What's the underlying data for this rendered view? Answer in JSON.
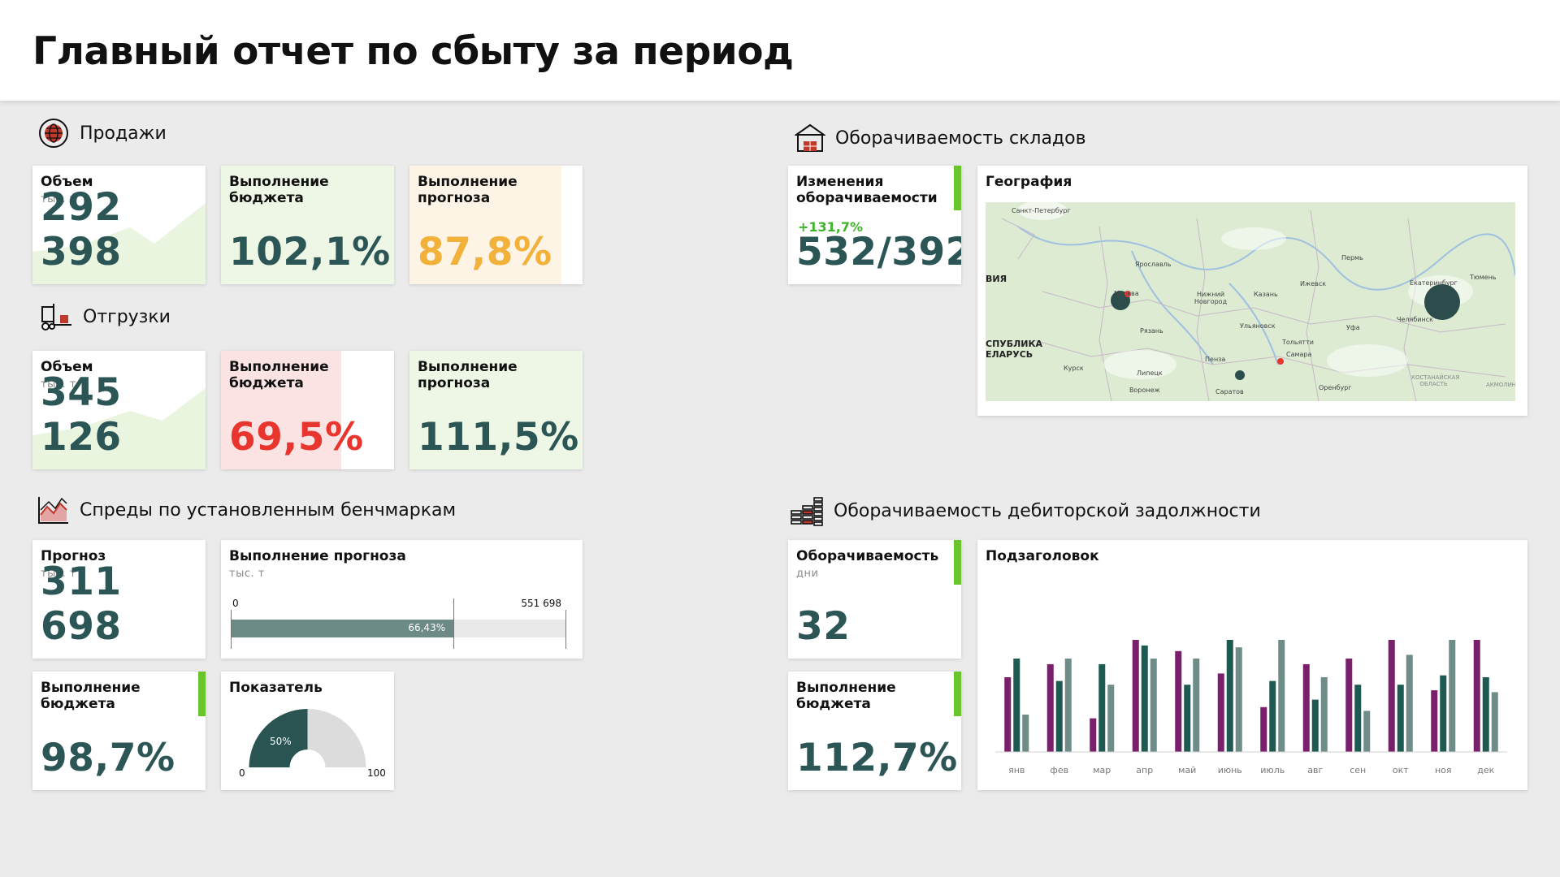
{
  "header": {
    "title": "Главный отчет по сбыту за период"
  },
  "sales": {
    "section_title": "Продажи",
    "icon": "globe-icon",
    "volume": {
      "title": "Объем",
      "unit": "тыс. т",
      "value": "292 398"
    },
    "budget": {
      "title": "Выполнение бюджета",
      "value": "102,1%",
      "progress": 1.0,
      "color": "#eef7e6"
    },
    "forecast": {
      "title": "Выполнение прогноза",
      "value": "87,8%",
      "progress": 0.878,
      "color": "#fdf4e6",
      "value_color": "#f2b13a"
    }
  },
  "shipments": {
    "section_title": "Отгрузки",
    "icon": "forklift-icon",
    "volume": {
      "title": "Объем",
      "unit": "тыс. т",
      "value": "345 126"
    },
    "budget": {
      "title": "Выполнение бюджета",
      "value": "69,5%",
      "progress": 0.695,
      "color": "#fbe3e3",
      "value_color": "#e8352e"
    },
    "forecast": {
      "title": "Выполнение прогноза",
      "value": "111,5%",
      "progress": 1.0,
      "color": "#eef7e6"
    }
  },
  "spreads": {
    "section_title": "Спреды по установленным бенчмаркам",
    "icon": "area-chart-icon",
    "forecast": {
      "title": "Прогноз",
      "unit": "тыс. т",
      "value": "311 698"
    },
    "forecast_execution": {
      "title": "Выполнение прогноза",
      "unit": "тыс. т",
      "min_label": "0",
      "max_label": "551 698",
      "bar_label": "66,43%",
      "progress": 0.6643
    },
    "budget": {
      "title": "Выполнение бюджета",
      "value": "98,7%"
    },
    "indicator": {
      "title": "Показатель",
      "gauge_label": "50%",
      "min_label": "0",
      "max_label": "100",
      "value": 0.5
    }
  },
  "warehouse": {
    "section_title": "Оборачиваемость складов",
    "icon": "warehouse-icon",
    "turnover_change": {
      "title": "Изменения оборачиваемости",
      "delta": "+131,7%",
      "value": "532/392"
    },
    "geography": {
      "title": "География",
      "cities": [
        "Санкт-Петербург",
        "Ярославль",
        "Пермь",
        "Ижевск",
        "Екатеринбург",
        "Тюмень",
        "Нижний Новгород",
        "Казань",
        "Челябинск",
        "Ульяновск",
        "Уфа",
        "Тольятти",
        "Рязань",
        "Самара",
        "Пенза",
        "Липецк",
        "Воронеж",
        "Саратов",
        "Оренбург",
        "Курск",
        "Москва"
      ],
      "regions": [
        "ВИЯ",
        "СПУБЛИКА",
        "ЕЛАРУСЬ",
        "КОСТАНАЙСКАЯ ОБЛАСТЬ",
        "АКМОЛИН"
      ]
    }
  },
  "receivables": {
    "section_title": "Оборачиваемость дебиторской задолжности",
    "icon": "coins-icon",
    "turnover": {
      "title": "Оборачиваемость",
      "unit": "дни",
      "value": "32"
    },
    "budget": {
      "title": "Выполнение бюджета",
      "value": "112,7%"
    },
    "chart": {
      "title": "Подзаголовок"
    }
  },
  "chart_data": {
    "type": "bar",
    "title": "Подзаголовок",
    "categories": [
      "янв",
      "фев",
      "мар",
      "апр",
      "май",
      "июнь",
      "июль",
      "авг",
      "сен",
      "окт",
      "ноя",
      "дек"
    ],
    "series": [
      {
        "color": "#7a1f6b",
        "values": [
          40,
          47,
          18,
          60,
          54,
          42,
          24,
          47,
          50,
          60,
          33,
          60
        ]
      },
      {
        "color": "#1f5a52",
        "values": [
          50,
          38,
          47,
          57,
          36,
          60,
          38,
          28,
          36,
          36,
          41,
          40
        ]
      },
      {
        "color": "#6e8c88",
        "values": [
          20,
          50,
          36,
          50,
          50,
          56,
          60,
          40,
          22,
          52,
          60,
          32
        ]
      }
    ],
    "ylim": [
      0,
      60
    ]
  }
}
